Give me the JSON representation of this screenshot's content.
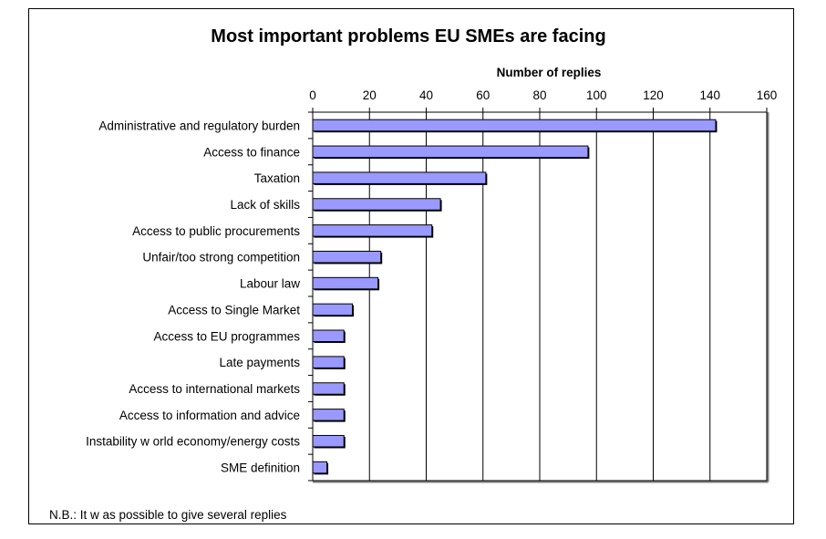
{
  "chart_data": {
    "type": "bar",
    "orientation": "horizontal",
    "title": "Most important problems EU SMEs are facing",
    "xlabel": "Number of replies",
    "ylabel": "",
    "xlim": [
      0,
      160
    ],
    "ticks": [
      0,
      20,
      40,
      60,
      80,
      100,
      120,
      140,
      160
    ],
    "grid": true,
    "legend": "none",
    "bar_color": "#9999ff",
    "categories": [
      "Administrative and regulatory burden",
      "Access to finance",
      "Taxation",
      "Lack of skills",
      "Access to public procurements",
      "Unfair/too strong competition",
      "Labour law",
      "Access to Single Market",
      "Access to EU programmes",
      "Late payments",
      "Access to international markets",
      "Access to information and advice",
      "Instability w orld economy/energy costs",
      "SME definition"
    ],
    "values": [
      142,
      97,
      61,
      45,
      42,
      24,
      23,
      14,
      11,
      11,
      11,
      11,
      11,
      5
    ],
    "note": "N.B.: It w as possible to give several replies"
  }
}
